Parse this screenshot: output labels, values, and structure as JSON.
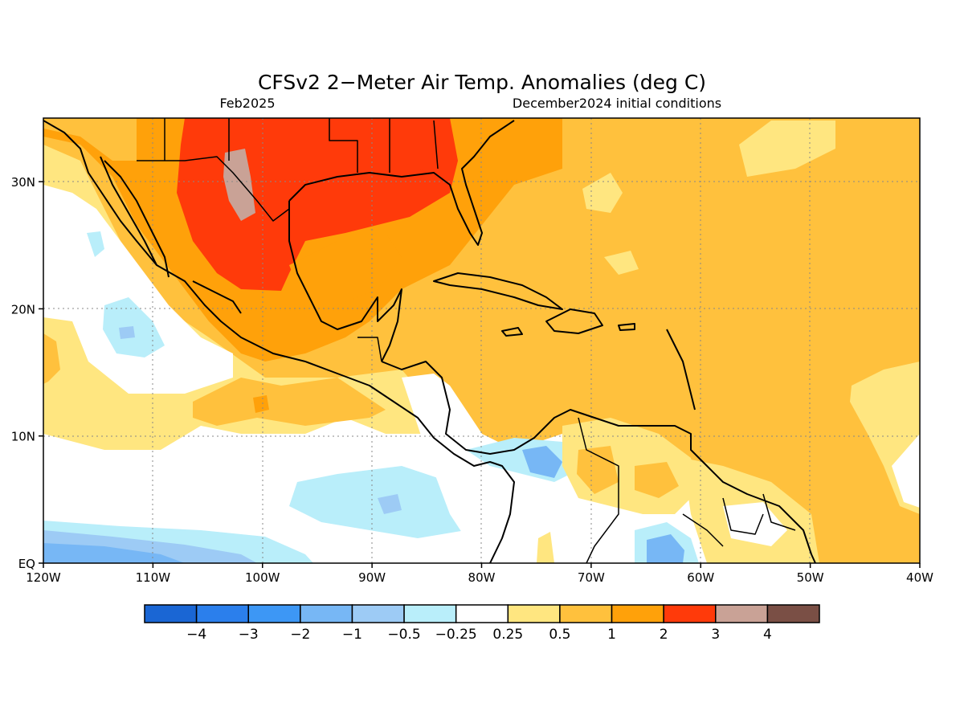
{
  "title": "CFSv2 2−Meter Air Temp. Anomalies (deg C)",
  "subtitle_left": "Feb2025",
  "subtitle_right": "December2024 initial conditions",
  "map": {
    "lon_range": [
      -120,
      -40
    ],
    "lat_range": [
      0,
      35
    ],
    "x_ticks": [
      "120W",
      "110W",
      "100W",
      "90W",
      "80W",
      "70W",
      "60W",
      "50W",
      "40W"
    ],
    "y_ticks": [
      "EQ",
      "10N",
      "20N",
      "30N"
    ],
    "grid": "dotted"
  },
  "colorbar": {
    "colors": [
      "#1a66d4",
      "#2b7fec",
      "#3d97f5",
      "#77b7f5",
      "#9dcbf5",
      "#b9eefa",
      "#ffffff",
      "#ffe680",
      "#ffc13d",
      "#ffa10a",
      "#ff3a0a",
      "#c9a296",
      "#7a4f45"
    ],
    "labels": [
      "−4",
      "−3",
      "−2",
      "−1",
      "−0.5",
      "−0.25",
      "0.25",
      "0.5",
      "1",
      "2",
      "3",
      "4"
    ]
  }
}
